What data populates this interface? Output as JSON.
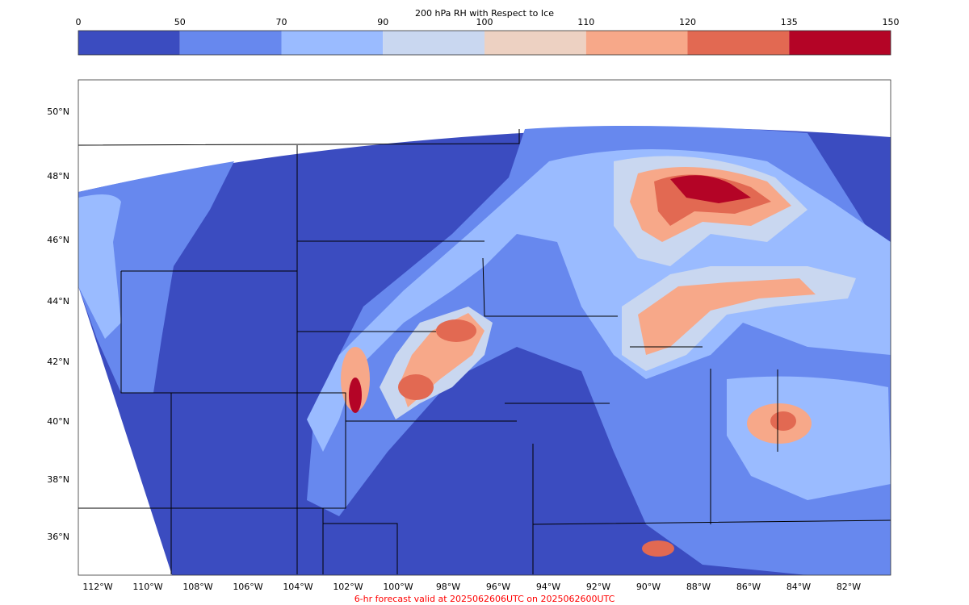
{
  "colorbar": {
    "title": "200 hPa RH with Respect to Ice",
    "ticks": [
      0,
      50,
      70,
      90,
      100,
      110,
      120,
      135,
      150
    ],
    "colors": [
      "#3b4cc0",
      "#6788ee",
      "#9abbff",
      "#c9d7f0",
      "#edd1c2",
      "#f7a889",
      "#e26952",
      "#b40426"
    ]
  },
  "map": {
    "lat_labels": [
      "50°N",
      "48°N",
      "46°N",
      "44°N",
      "42°N",
      "40°N",
      "38°N",
      "36°N"
    ],
    "lon_labels": [
      "112°W",
      "110°W",
      "108°W",
      "106°W",
      "104°W",
      "102°W",
      "100°W",
      "98°W",
      "96°W",
      "94°W",
      "92°W",
      "90°W",
      "88°W",
      "86°W",
      "84°W",
      "82°W"
    ]
  },
  "footer": "6-hr forecast valid at 2025062606UTC on 2025062600UTC"
}
